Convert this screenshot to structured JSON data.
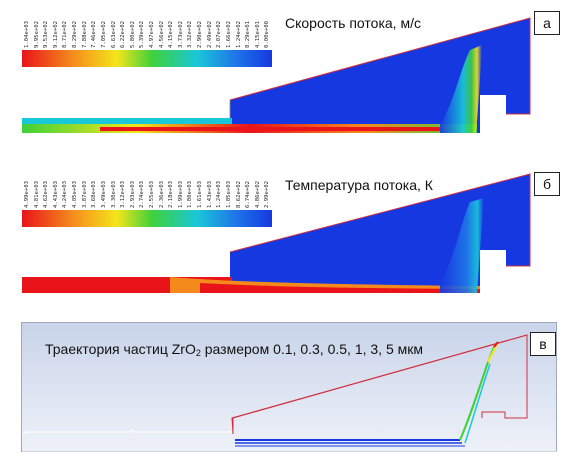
{
  "panel_a": {
    "tag": "а",
    "title": "Скорость потока, м/с",
    "legend_values": [
      "1.04e+03",
      "9.95e+02",
      "9.53e+02",
      "9.12e+02",
      "8.71e+02",
      "8.29e+02",
      "7.88e+02",
      "7.46e+02",
      "7.05e+02",
      "6.63e+02",
      "6.22e+02",
      "5.80e+02",
      "5.39e+02",
      "4.97e+02",
      "4.56e+02",
      "4.15e+02",
      "3.73e+02",
      "3.32e+02",
      "2.90e+02",
      "2.49e+02",
      "2.07e+02",
      "1.66e+02",
      "1.24e+02",
      "8.29e+01",
      "4.15e+01",
      "0.00e+00"
    ]
  },
  "panel_b": {
    "tag": "б",
    "title": "Температура потока, К",
    "legend_values": [
      "4.99e+03",
      "4.81e+03",
      "4.62e+03",
      "4.43e+03",
      "4.24e+03",
      "4.05e+03",
      "3.87e+03",
      "3.68e+03",
      "3.49e+03",
      "3.30e+03",
      "3.12e+03",
      "2.93e+03",
      "2.74e+03",
      "2.55e+03",
      "2.36e+03",
      "2.18e+03",
      "1.99e+03",
      "1.80e+03",
      "1.61e+03",
      "1.43e+03",
      "1.24e+03",
      "1.05e+03",
      "8.62e+02",
      "6.74e+02",
      "4.86e+02",
      "2.99e+02"
    ]
  },
  "panel_c": {
    "tag": "в",
    "title_prefix": "Траектория частиц ZrO",
    "title_sub": "2",
    "title_suffix": " размером 0.1, 0.3, 0.5, 1, 3, 5 мкм"
  },
  "colors": {
    "red": "#e8141a",
    "orange": "#f58a1c",
    "yellow": "#f4e61b",
    "green": "#3fd13a",
    "cyan": "#19c8d8",
    "blue": "#1638e0",
    "frame_line": "#d03040"
  }
}
